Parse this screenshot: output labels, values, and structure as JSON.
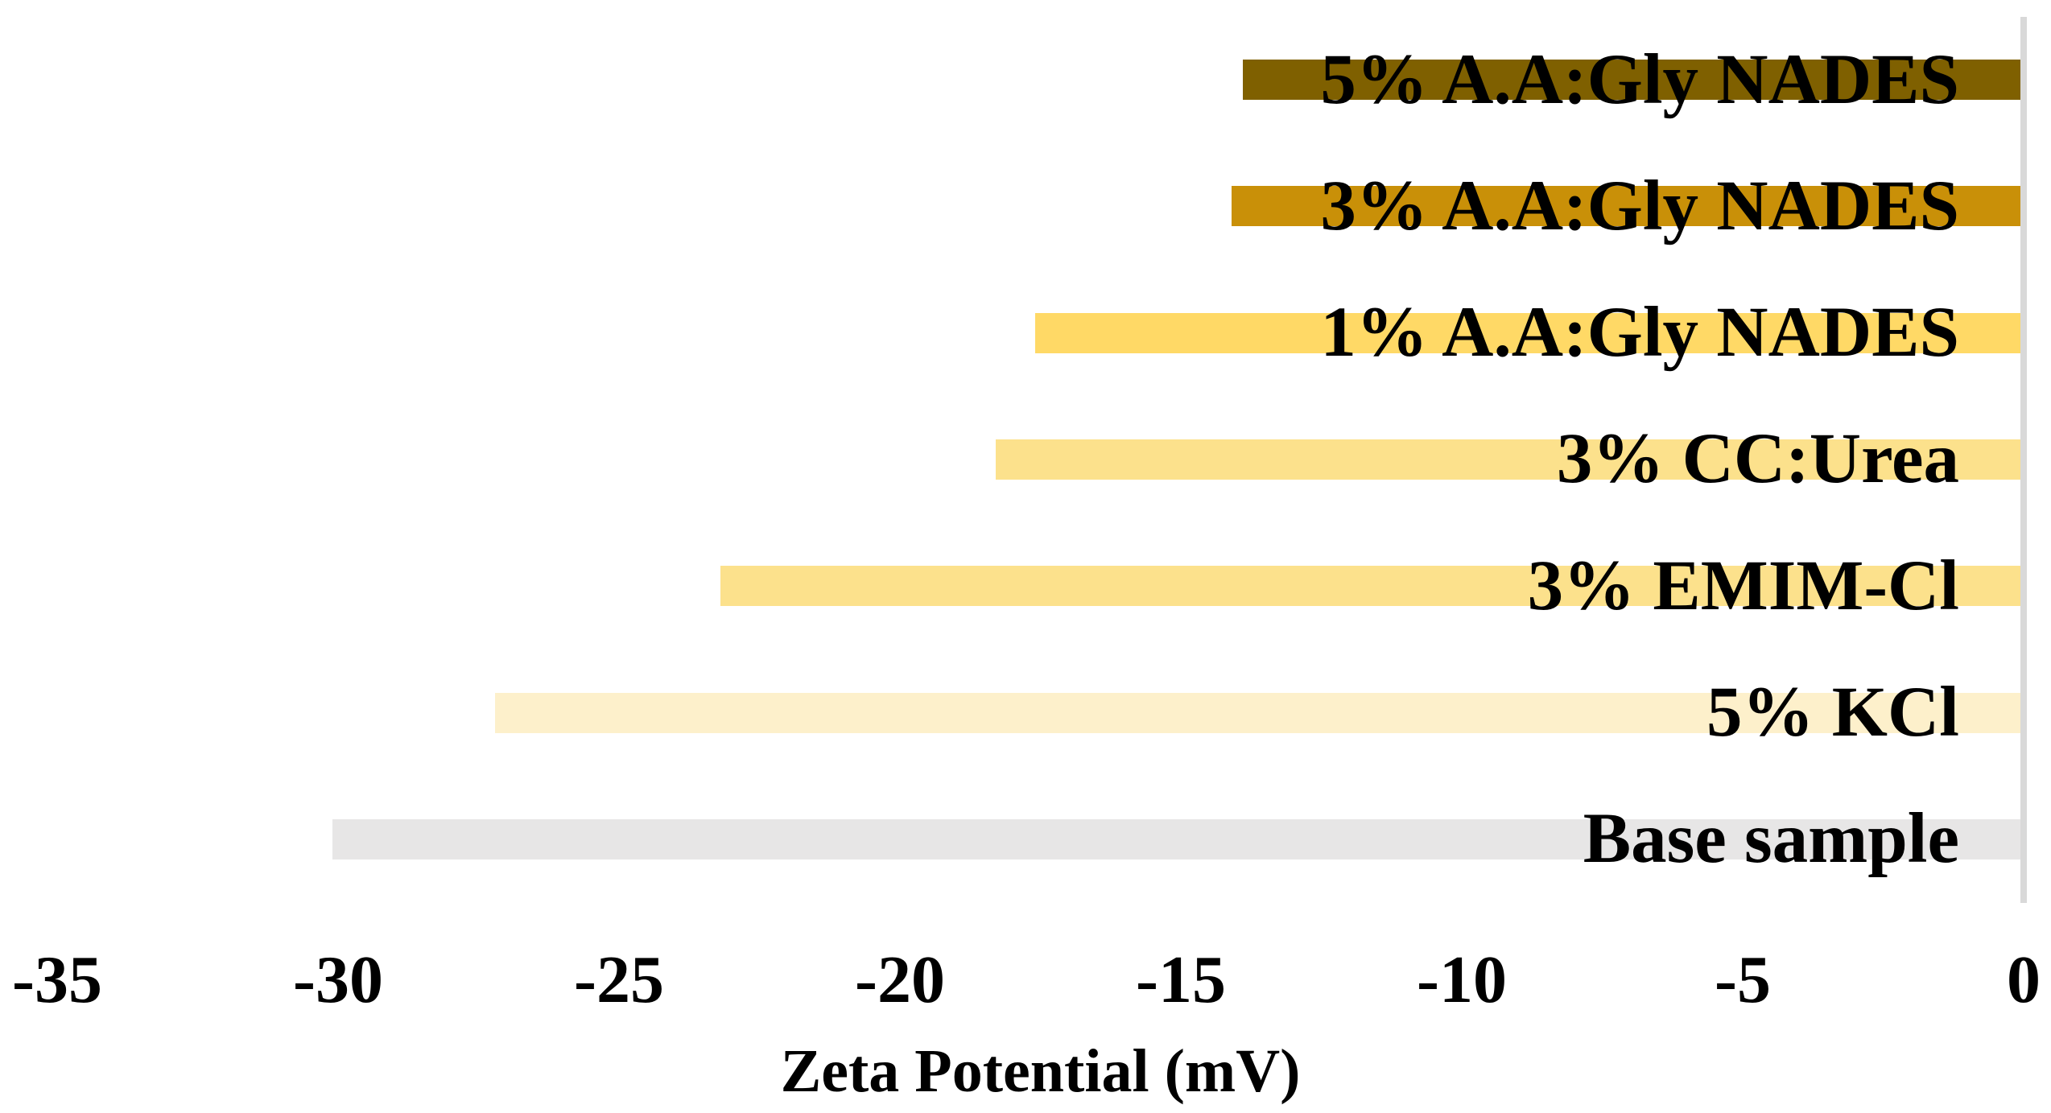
{
  "chart_data": {
    "type": "bar",
    "orientation": "horizontal",
    "title": "",
    "xlabel": "Zeta Potential (mV)",
    "ylabel": "",
    "xlim": [
      -35,
      0
    ],
    "xticks": [
      -35,
      -30,
      -25,
      -20,
      -15,
      -10,
      -5,
      0
    ],
    "grid": false,
    "legend": false,
    "categories": [
      "5% A.A:Gly NADES",
      "3% A.A:Gly NADES",
      "1% A.A:Gly NADES",
      "3% CC:Urea",
      "3% EMIM-Cl",
      "5% KCl",
      "Base sample"
    ],
    "values": [
      -13.9,
      -14.1,
      -17.6,
      -18.3,
      -23.2,
      -27.2,
      -30.1
    ],
    "bar_colors": [
      "#7F6000",
      "#C99008",
      "#FFD966",
      "#FCE18C",
      "#FCE18C",
      "#FDF0CB",
      "#E7E6E6"
    ],
    "label_color": "#000000",
    "axis_line_color": "#D9D9D9"
  }
}
